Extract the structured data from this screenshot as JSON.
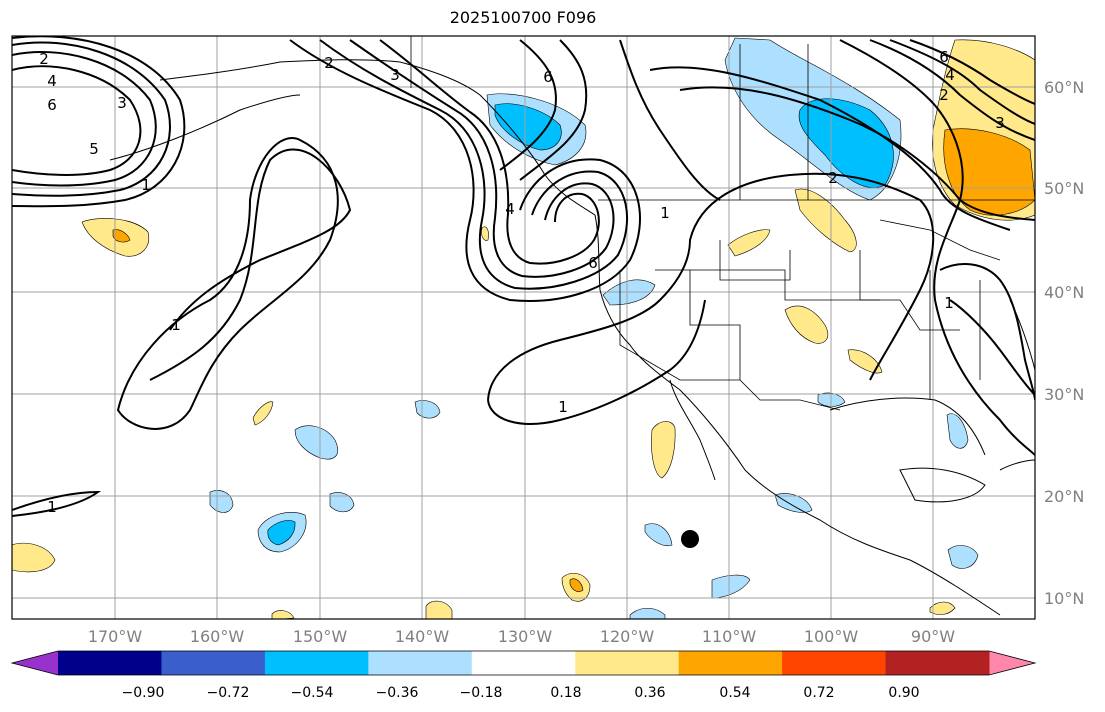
{
  "title": "2025100700 F096",
  "lon_ticks": [
    "170°W",
    "160°W",
    "150°W",
    "140°W",
    "130°W",
    "120°W",
    "110°W",
    "100°W",
    "90°W"
  ],
  "lat_ticks": [
    "60°N",
    "50°N",
    "40°N",
    "30°N",
    "20°N",
    "10°N"
  ],
  "colorbar": {
    "ticks": [
      "−0.90",
      "−0.72",
      "−0.54",
      "−0.36",
      "−0.18",
      "0.18",
      "0.36",
      "0.54",
      "0.72",
      "0.90"
    ],
    "colors": [
      "#9932CC",
      "#00008B",
      "#3A5FCD",
      "#00BFFF",
      "#ADDFFF",
      "#FFFFFF",
      "#FFE98A",
      "#FFA500",
      "#FF4500",
      "#B22222",
      "#FF88AA"
    ]
  },
  "fill_colors": {
    "light_blue": "#ADDFFF",
    "blue": "#00BFFF",
    "light_yellow": "#FFE98A",
    "orange": "#FFA500"
  },
  "contour_labels": [
    "2",
    "4",
    "6",
    "3",
    "5",
    "1",
    "2",
    "3",
    "4",
    "6",
    "6",
    "1",
    "1",
    "1",
    "2",
    "2",
    "3",
    "4",
    "6",
    "1",
    "1"
  ],
  "marker": "storm-center-dot"
}
